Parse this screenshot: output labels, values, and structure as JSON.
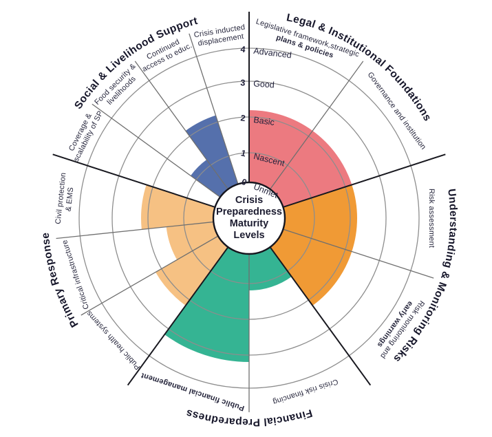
{
  "page": {
    "background": "#ffffff"
  },
  "chart_data": {
    "type": "radial-maturity-wheel",
    "center_label": "Crisis Preparedness Maturity Levels",
    "scale_max": 4,
    "scale": [
      {
        "value": 0,
        "label": "Unmet"
      },
      {
        "value": 1,
        "label": "Nascent"
      },
      {
        "value": 2,
        "label": "Basic"
      },
      {
        "value": 3,
        "label": "Good"
      },
      {
        "value": 4,
        "label": "Advanced"
      }
    ],
    "categories": [
      {
        "name": "Legal & Institutional Foundations",
        "color": "#ec7a80",
        "spokes": [
          {
            "label_lines": [
              "Legislative framework,strategic",
              "plans & policies"
            ],
            "bold_lines": [
              1
            ],
            "value": 2
          },
          {
            "label_lines": [
              "Governance and institution"
            ],
            "bold_lines": [],
            "value": 2
          }
        ]
      },
      {
        "name": "Understanding & Monitoring Risks",
        "color": "#f09a35",
        "spokes": [
          {
            "label_lines": [
              "Risk assessment"
            ],
            "bold_lines": [],
            "value": 2
          },
          {
            "label_lines": [
              "Risk monitoring and",
              "early warnings"
            ],
            "bold_lines": [
              1
            ],
            "value": 2
          }
        ]
      },
      {
        "name": "Financial Preparedness",
        "color": "#35b493",
        "spokes": [
          {
            "label_lines": [
              "Crisis risk financing"
            ],
            "bold_lines": [],
            "value": 1
          },
          {
            "label_lines": [
              "Public financial management"
            ],
            "bold_lines": [
              0
            ],
            "value": 3
          }
        ]
      },
      {
        "name": "Primary Response",
        "color": "#f6c183",
        "spokes": [
          {
            "label_lines": [
              "Public health systems"
            ],
            "bold_lines": [],
            "value": 2
          },
          {
            "label_lines": [
              "Critical infrastructure"
            ],
            "bold_lines": [],
            "value": 1.5
          },
          {
            "label_lines": [
              "Civil protection",
              "& EMS"
            ],
            "bold_lines": [],
            "value": 2
          }
        ]
      },
      {
        "name": "Social & Livelihood Support",
        "color": "#5570ac",
        "spokes": [
          {
            "label_lines": [
              "Coverage &",
              "scalability of SP"
            ],
            "bold_lines": [],
            "value": 0
          },
          {
            "label_lines": [
              "Food security &",
              "livelihoods"
            ],
            "bold_lines": [],
            "value": 1
          },
          {
            "label_lines": [
              "Continued",
              "access to educ."
            ],
            "bold_lines": [],
            "value": 2
          },
          {
            "label_lines": [
              "Crisis inducted",
              "displacement"
            ],
            "bold_lines": [],
            "value": 0
          }
        ]
      }
    ],
    "grid_colors": {
      "ring": "#8d8d8d",
      "spoke": "#6f6f6f",
      "category_divider": "#18181f",
      "text": "#23233a"
    }
  }
}
